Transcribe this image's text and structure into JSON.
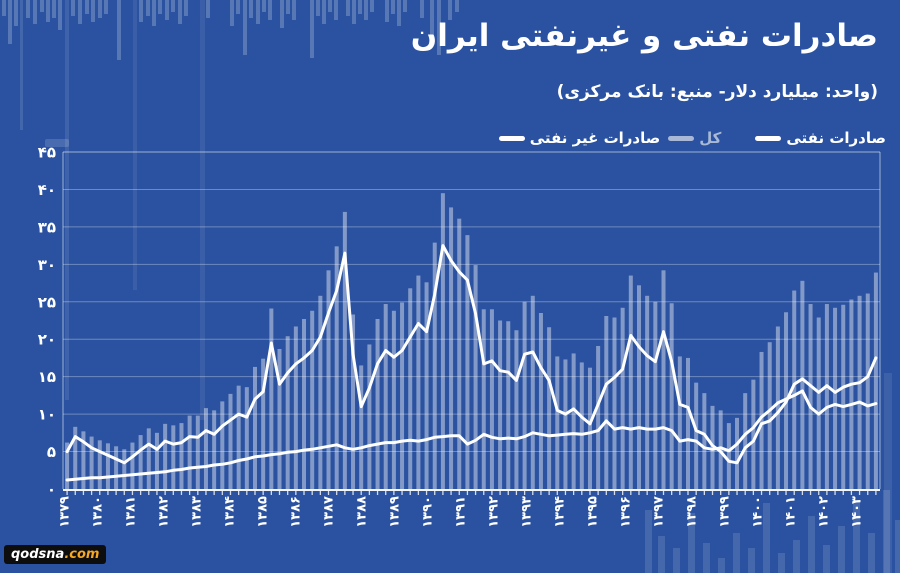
{
  "header": {
    "title": "صادرات نفتی و غیرنفتی ایران",
    "subtitle": "(واحد: میلیارد دلار- منبع: بانک مرکزی)"
  },
  "legend": [
    {
      "label": "صادرات غیر نفتی",
      "color": "#ffffff"
    },
    {
      "label": "کل",
      "color": "#a9b8d6"
    },
    {
      "label": "صادرات نفتی",
      "color": "#ffffff"
    }
  ],
  "watermark": {
    "site": "qodsna",
    "tld": ".com"
  },
  "chart_data": {
    "type": "bar",
    "title": "صادرات نفتی و غیرنفتی ایران",
    "unit": "میلیارد دلار",
    "source": "بانک مرکزی",
    "ylim": [
      0,
      45
    ],
    "grid": "horizontal",
    "legend_position": "top-right",
    "y_tick_labels": [
      "۰",
      "۵",
      "۱۰",
      "۱۵",
      "۲۰",
      "۲۵",
      "۳۰",
      "۳۵",
      "۴۰",
      "۴۵"
    ],
    "x_year_labels": [
      "۱۳۷۹",
      "۱۳۸۰",
      "۱۳۸۱",
      "۱۳۸۲",
      "۱۳۸۳",
      "۱۳۸۴",
      "۱۳۸۵",
      "۱۳۸۶",
      "۱۳۸۷",
      "۱۳۸۸",
      "۱۳۸۹",
      "۱۳۹۰",
      "۱۳۹۱",
      "۱۳۹۲",
      "۱۳۹۳",
      "۱۳۹۴",
      "۱۳۹۵",
      "۱۳۹۶",
      "۱۳۹۷",
      "۱۳۹۸",
      "۱۳۹۹",
      "۱۴۰۰",
      "۱۴۰۱",
      "۱۴۰۲",
      "۱۴۰۳"
    ],
    "points_per_year": 4,
    "series": [
      {
        "name": "کل",
        "type": "bar",
        "color": "rgba(255,255,255,0.42)",
        "values": [
          6.2,
          8.3,
          7.7,
          7.0,
          6.5,
          6.1,
          5.7,
          5.3,
          6.2,
          7.2,
          8.1,
          7.5,
          8.7,
          8.5,
          8.8,
          9.8,
          9.8,
          10.8,
          10.5,
          11.7,
          12.7,
          13.8,
          13.6,
          16.3,
          17.4,
          24.1,
          18.7,
          20.4,
          21.7,
          22.7,
          23.8,
          25.8,
          29.2,
          32.4,
          37.0,
          23.3,
          16.5,
          19.3,
          22.7,
          24.7,
          23.8,
          24.9,
          26.8,
          28.5,
          27.6,
          32.9,
          39.5,
          37.6,
          36.1,
          33.9,
          29.9,
          24.0,
          24.0,
          22.5,
          22.4,
          21.2,
          25.0,
          25.8,
          23.5,
          21.6,
          17.7,
          17.3,
          18.1,
          16.9,
          16.2,
          19.1,
          23.1,
          22.9,
          24.2,
          28.5,
          27.2,
          25.8,
          25.0,
          29.2,
          24.8,
          17.7,
          17.5,
          14.2,
          12.8,
          11.1,
          10.5,
          8.8,
          9.5,
          12.8,
          14.6,
          18.3,
          19.6,
          21.7,
          23.6,
          26.5,
          27.8,
          24.7,
          22.9,
          24.7,
          24.2,
          24.6,
          25.3,
          25.8,
          26.1,
          28.9
        ]
      },
      {
        "name": "صادرات نفتی",
        "type": "line",
        "color": "#ffffff",
        "values": [
          5.0,
          7.0,
          6.3,
          5.5,
          5.0,
          4.5,
          4.0,
          3.5,
          4.3,
          5.2,
          6.0,
          5.3,
          6.4,
          6.0,
          6.2,
          7.0,
          6.9,
          7.8,
          7.3,
          8.4,
          9.2,
          10.0,
          9.6,
          12.0,
          13.0,
          19.5,
          14.0,
          15.5,
          16.7,
          17.5,
          18.5,
          20.3,
          23.5,
          26.5,
          31.5,
          18.0,
          11.0,
          13.5,
          16.7,
          18.5,
          17.6,
          18.5,
          20.3,
          22.1,
          21.0,
          26.0,
          32.5,
          30.5,
          29.0,
          27.9,
          23.4,
          16.7,
          17.1,
          15.8,
          15.6,
          14.5,
          18.0,
          18.3,
          16.2,
          14.5,
          10.5,
          10.0,
          10.7,
          9.6,
          8.7,
          11.3,
          14.0,
          14.9,
          16.0,
          20.5,
          19.0,
          17.8,
          17.0,
          21.0,
          17.0,
          11.3,
          10.9,
          7.8,
          7.3,
          5.8,
          5.0,
          3.7,
          3.5,
          5.5,
          6.4,
          8.7,
          9.1,
          10.2,
          11.6,
          14.0,
          14.7,
          13.8,
          12.9,
          13.8,
          12.9,
          13.6,
          14.0,
          14.2,
          15.0,
          17.5
        ]
      },
      {
        "name": "صادرات غیر نفتی",
        "type": "line",
        "color": "#ffffff",
        "values": [
          1.2,
          1.3,
          1.4,
          1.5,
          1.5,
          1.6,
          1.7,
          1.8,
          1.9,
          2.0,
          2.1,
          2.2,
          2.3,
          2.5,
          2.6,
          2.8,
          2.9,
          3.0,
          3.2,
          3.3,
          3.5,
          3.8,
          4.0,
          4.3,
          4.4,
          4.6,
          4.7,
          4.9,
          5.0,
          5.2,
          5.3,
          5.5,
          5.7,
          5.9,
          5.5,
          5.3,
          5.5,
          5.8,
          6.0,
          6.2,
          6.2,
          6.4,
          6.5,
          6.4,
          6.6,
          6.9,
          7.0,
          7.1,
          7.1,
          6.0,
          6.5,
          7.3,
          6.9,
          6.7,
          6.8,
          6.7,
          7.0,
          7.5,
          7.3,
          7.1,
          7.2,
          7.3,
          7.4,
          7.3,
          7.5,
          7.8,
          9.1,
          8.0,
          8.2,
          8.0,
          8.2,
          8.0,
          8.0,
          8.2,
          7.8,
          6.4,
          6.6,
          6.4,
          5.5,
          5.3,
          5.5,
          5.1,
          6.0,
          7.3,
          8.2,
          9.6,
          10.5,
          11.5,
          12.0,
          12.5,
          13.1,
          10.9,
          10.0,
          10.9,
          11.3,
          11.0,
          11.3,
          11.6,
          11.1,
          11.4
        ]
      }
    ]
  }
}
